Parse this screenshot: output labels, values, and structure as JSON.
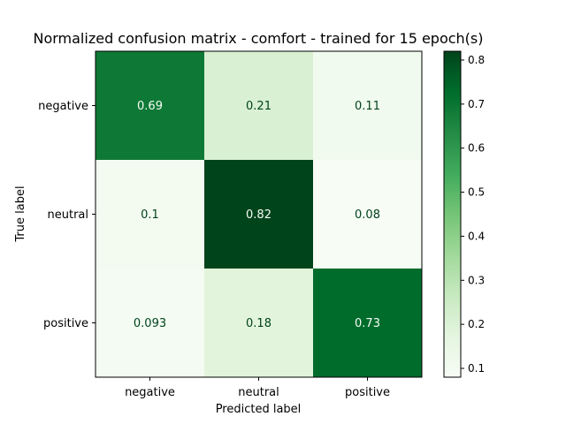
{
  "chart_data": {
    "type": "heatmap",
    "title": "Normalized confusion matrix - comfort - trained for 15 epoch(s)",
    "xlabel": "Predicted label",
    "ylabel": "True label",
    "x_categories": [
      "negative",
      "neutral",
      "positive"
    ],
    "y_categories": [
      "negative",
      "neutral",
      "positive"
    ],
    "values": [
      [
        0.69,
        0.21,
        0.11
      ],
      [
        0.1,
        0.82,
        0.08
      ],
      [
        0.093,
        0.18,
        0.73
      ]
    ],
    "cell_labels": [
      [
        "0.69",
        "0.21",
        "0.11"
      ],
      [
        "0.1",
        "0.82",
        "0.08"
      ],
      [
        "0.093",
        "0.18",
        "0.73"
      ]
    ],
    "colormap": "Greens",
    "color_range": [
      0.08,
      0.82
    ],
    "colorbar_ticks": [
      0.1,
      0.2,
      0.3,
      0.4,
      0.5,
      0.6,
      0.7,
      0.8
    ],
    "colorbar_tick_labels": [
      "0.1",
      "0.2",
      "0.3",
      "0.4",
      "0.5",
      "0.6",
      "0.7",
      "0.8"
    ],
    "grid": false,
    "colorbar_placement": "right"
  }
}
